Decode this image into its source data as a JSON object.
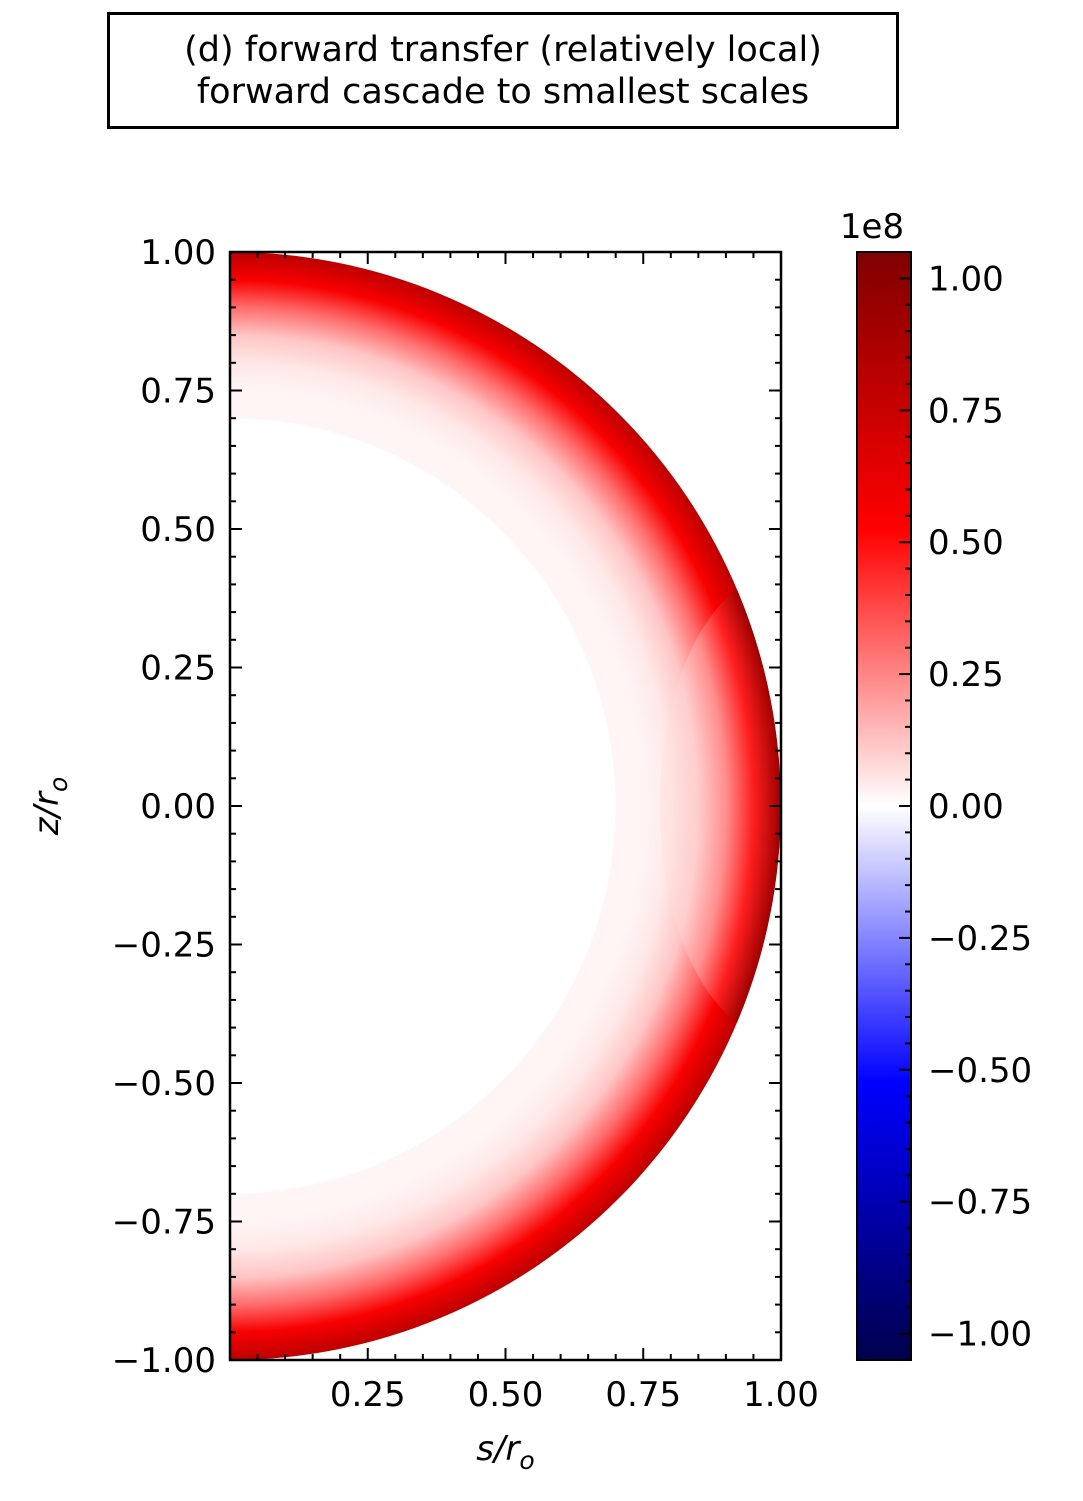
{
  "title_lines": [
    "(d) forward transfer (relatively local)",
    "forward cascade to smallest scales"
  ],
  "chart_data": {
    "type": "heatmap",
    "subtype": "meridional-section",
    "title": "(d) forward transfer (relatively local) forward cascade to smallest scales",
    "xlabel": "s/r_o",
    "ylabel": "z/r_o",
    "xlim": [
      0.0,
      1.0
    ],
    "ylim": [
      -1.0,
      1.0
    ],
    "x_ticks": [
      {
        "value": 0.25,
        "label": "0.25"
      },
      {
        "value": 0.5,
        "label": "0.50"
      },
      {
        "value": 0.75,
        "label": "0.75"
      },
      {
        "value": 1.0,
        "label": "1.00"
      }
    ],
    "y_ticks": [
      {
        "value": 1.0,
        "label": "1.00"
      },
      {
        "value": 0.75,
        "label": "0.75"
      },
      {
        "value": 0.5,
        "label": "0.50"
      },
      {
        "value": 0.25,
        "label": "0.25"
      },
      {
        "value": 0.0,
        "label": "0.00"
      },
      {
        "value": -0.25,
        "label": "−0.25"
      },
      {
        "value": -0.5,
        "label": "−0.50"
      },
      {
        "value": -0.75,
        "label": "−0.75"
      },
      {
        "value": -1.0,
        "label": "−1.00"
      }
    ],
    "domain": {
      "inner_radius": 0.7,
      "outer_radius": 1.0
    },
    "colormap": "seismic",
    "colorbar": {
      "scale_label": "1e8",
      "range": [
        -1.05,
        1.05
      ],
      "ticks": [
        {
          "value": 1.0,
          "label": "1.00"
        },
        {
          "value": 0.75,
          "label": "0.75"
        },
        {
          "value": 0.5,
          "label": "0.50"
        },
        {
          "value": 0.25,
          "label": "0.25"
        },
        {
          "value": 0.0,
          "label": "0.00"
        },
        {
          "value": -0.25,
          "label": "−0.25"
        },
        {
          "value": -0.5,
          "label": "−0.50"
        },
        {
          "value": -0.75,
          "label": "−0.75"
        },
        {
          "value": -1.0,
          "label": "−1.00"
        }
      ],
      "colors": {
        "max": "#800000",
        "high": "#ff0000",
        "zero": "#ffffff",
        "low": "#0000ff",
        "min": "#00004c"
      }
    },
    "field_profile": {
      "radius": [
        0.7,
        0.75,
        0.8,
        0.85,
        0.9,
        0.95,
        1.0
      ],
      "value_equator": [
        0.05,
        0.04,
        0.06,
        0.1,
        0.22,
        0.45,
        0.95
      ],
      "value_mid_latitude": [
        0.02,
        0.02,
        0.05,
        0.12,
        0.3,
        0.55,
        0.8
      ]
    }
  }
}
